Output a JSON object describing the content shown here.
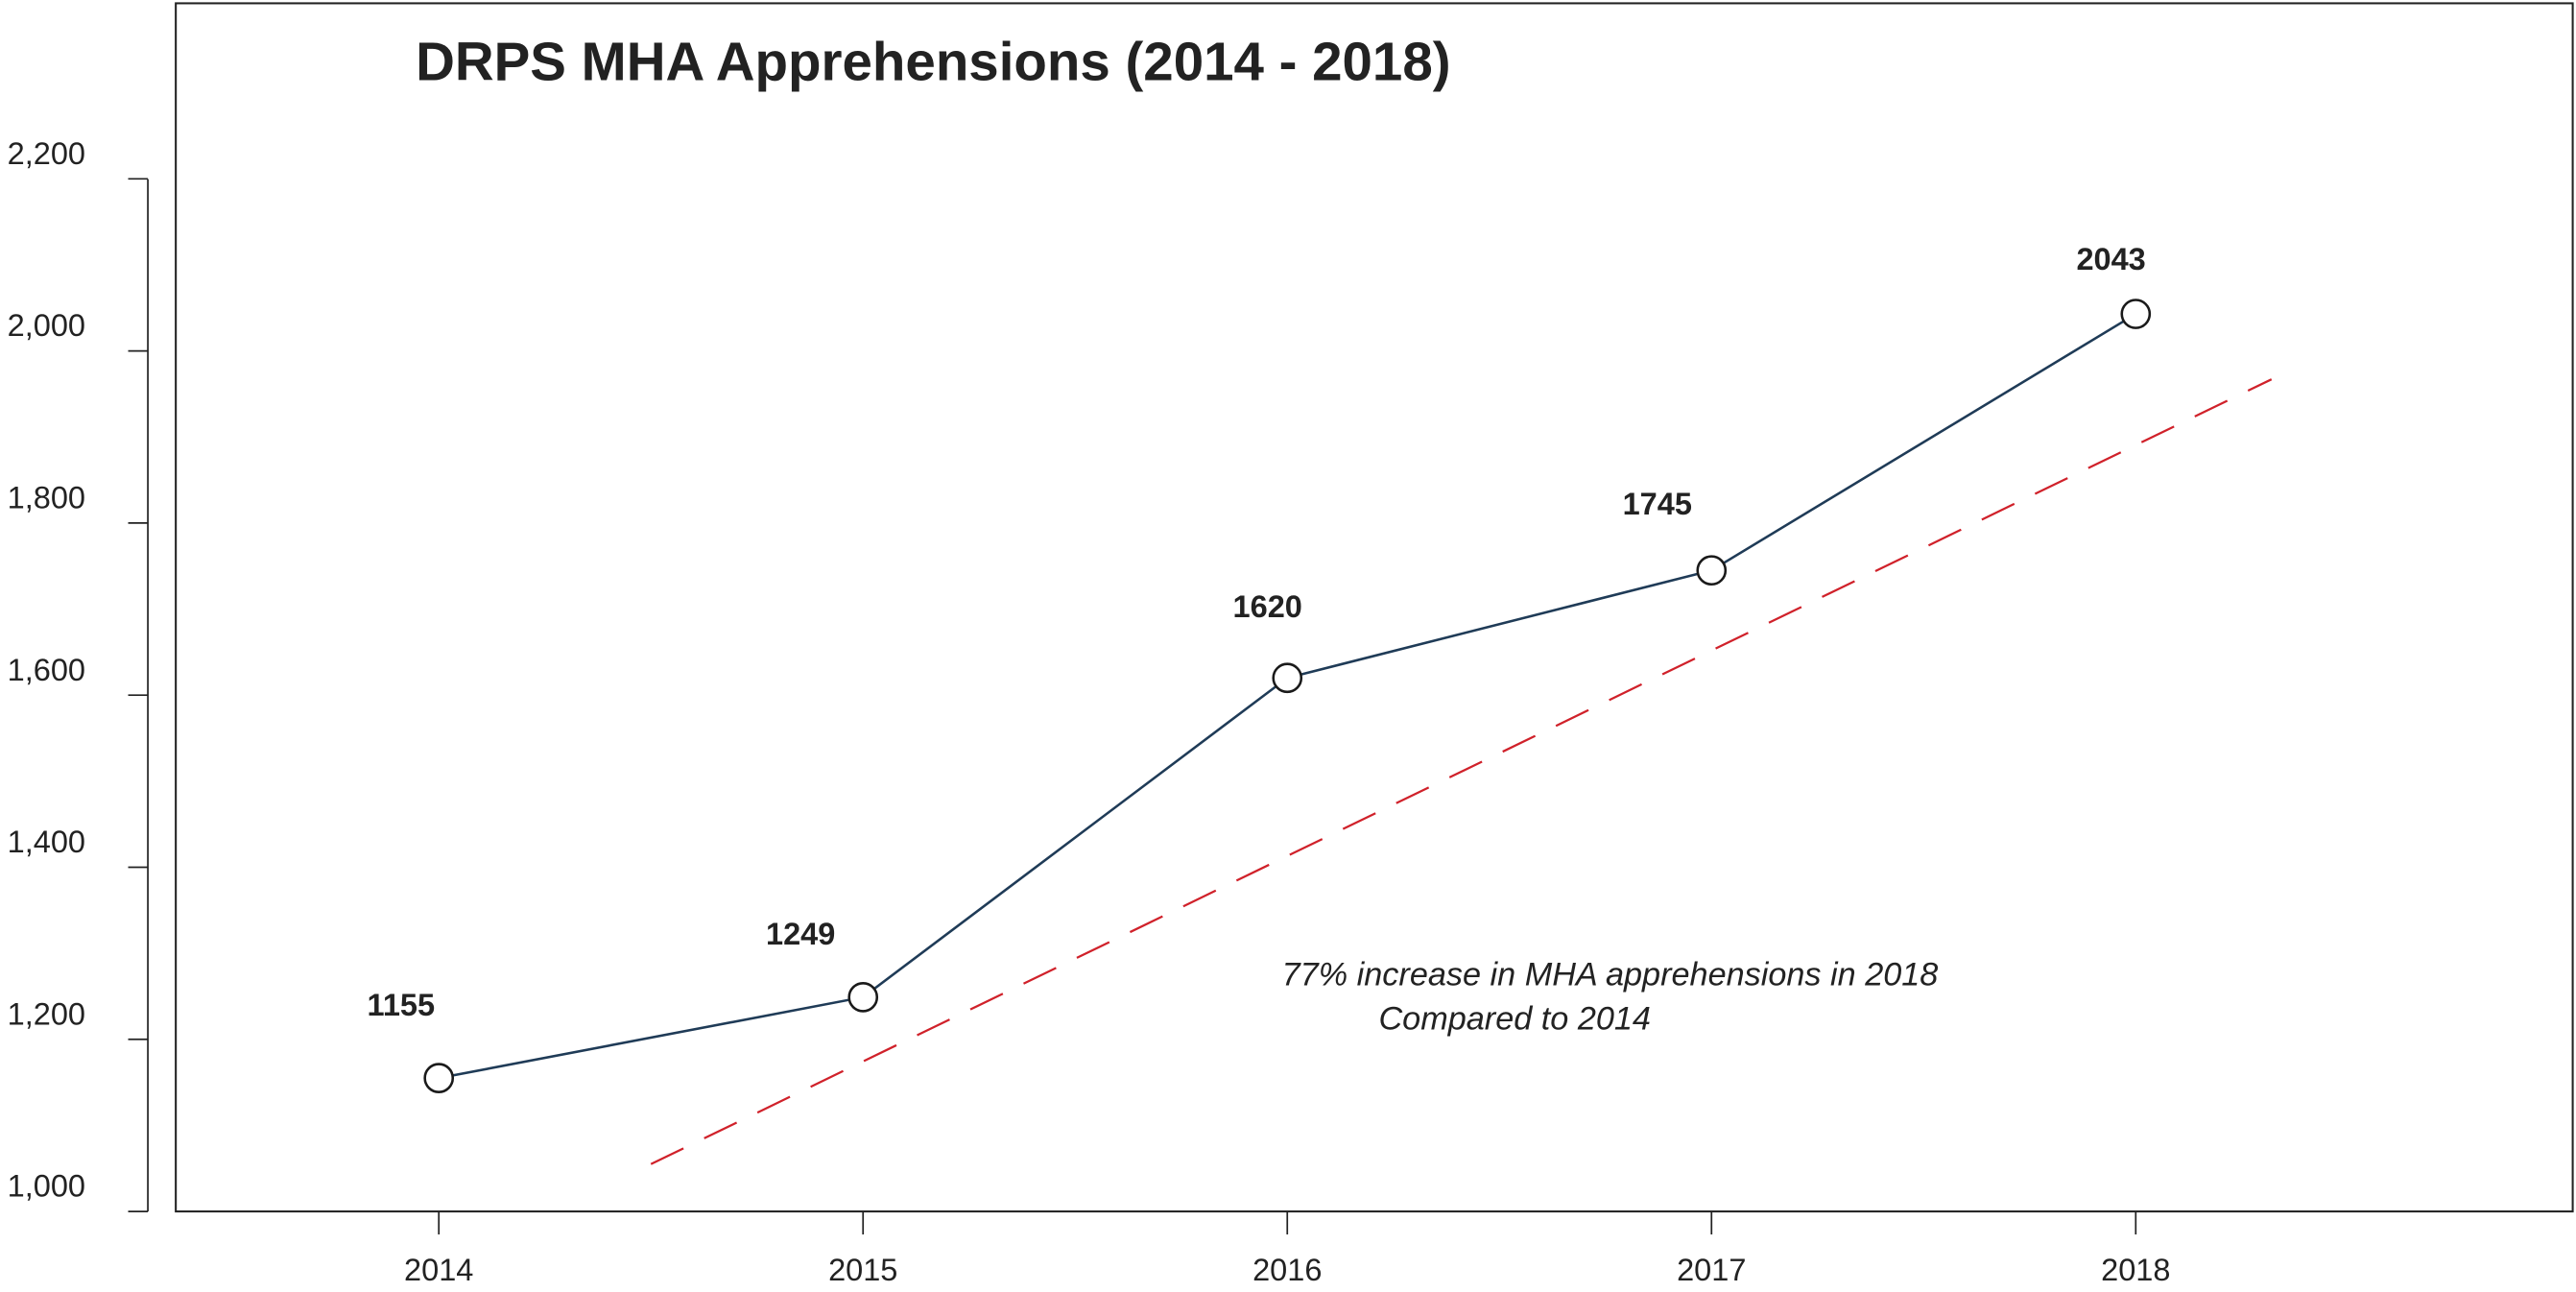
{
  "chart_data": {
    "type": "line",
    "title": "DRPS  MHA  Apprehensions (2014 - 2018)",
    "x": [
      2014,
      2015,
      2016,
      2017,
      2018
    ],
    "series": [
      {
        "name": "MHA Apprehensions",
        "color": "#1f3b57",
        "values": [
          1155,
          1249,
          1620,
          1745,
          2043
        ]
      }
    ],
    "trend": {
      "color": "#d0212a",
      "x": [
        2014.5,
        2018.32
      ],
      "values": [
        1055,
        1967
      ]
    },
    "xlim": [
      2013.38,
      2019.03
    ],
    "xticks": [
      2014,
      2015,
      2016,
      2017,
      2018
    ],
    "ylim": [
      1000,
      2404
    ],
    "yticks": [
      {
        "value": 1000,
        "label": "1,000"
      },
      {
        "value": 1200,
        "label": "1,200"
      },
      {
        "value": 1400,
        "label": "1,400"
      },
      {
        "value": 1600,
        "label": "1,600"
      },
      {
        "value": 1800,
        "label": "1,800"
      },
      {
        "value": 2000,
        "label": "2,000"
      },
      {
        "value": 2200,
        "label": "2,200"
      }
    ],
    "annotations": [
      "77% increase in MHA apprehensions in 2018",
      "Compared to 2014"
    ]
  }
}
